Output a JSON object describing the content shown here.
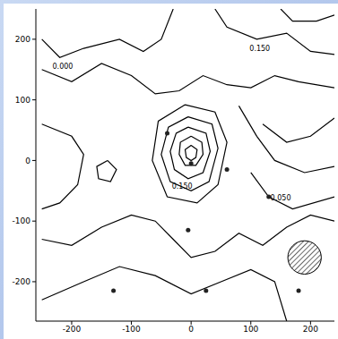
{
  "chart_data": {
    "type": "contour",
    "xlim": [
      -260,
      240
    ],
    "ylim": [
      -265,
      250
    ],
    "xticks": [
      -200,
      -100,
      0,
      100,
      200
    ],
    "yticks": [
      -200,
      -100,
      0,
      100,
      200
    ],
    "contours": [
      {
        "x": [
          0,
          10,
          8,
          0,
          -8,
          -10,
          0
        ],
        "y": [
          25,
          18,
          5,
          0,
          5,
          18,
          25
        ]
      },
      {
        "x": [
          0,
          18,
          20,
          8,
          -10,
          -20,
          -18,
          0
        ],
        "y": [
          40,
          30,
          10,
          -8,
          -8,
          10,
          30,
          40
        ]
      },
      {
        "x": [
          -5,
          25,
          32,
          20,
          -5,
          -28,
          -35,
          -25,
          -5
        ],
        "y": [
          55,
          45,
          15,
          -20,
          -30,
          -15,
          15,
          45,
          55
        ]
      },
      {
        "x": [
          -5,
          35,
          45,
          30,
          0,
          -35,
          -50,
          -38,
          -5
        ],
        "y": [
          72,
          60,
          20,
          -35,
          -50,
          -35,
          10,
          55,
          72
        ]
      },
      {
        "x": [
          -10,
          40,
          60,
          45,
          10,
          -40,
          -65,
          -55,
          -10
        ],
        "y": [
          92,
          80,
          30,
          -40,
          -70,
          -60,
          0,
          65,
          92
        ]
      },
      {
        "x": [
          -250,
          -200,
          -150,
          -100,
          -60,
          -20,
          20,
          60,
          100,
          140,
          180,
          240
        ],
        "y": [
          150,
          130,
          160,
          140,
          110,
          115,
          140,
          125,
          120,
          140,
          130,
          120
        ]
      },
      {
        "x": [
          -250,
          -220,
          -180,
          -120,
          -80,
          -50,
          -30
        ],
        "y": [
          200,
          170,
          185,
          200,
          180,
          200,
          250
        ]
      },
      {
        "x": [
          40,
          60,
          110,
          160,
          200,
          240
        ],
        "y": [
          250,
          220,
          200,
          210,
          180,
          175
        ]
      },
      {
        "x": [
          150,
          170,
          210,
          240
        ],
        "y": [
          250,
          230,
          230,
          240
        ]
      },
      {
        "x": [
          -140,
          -125,
          -135,
          -155,
          -158,
          -140
        ],
        "y": [
          0,
          -15,
          -35,
          -30,
          -10,
          0
        ]
      },
      {
        "x": [
          -250,
          -200,
          -180,
          -190,
          -220,
          -250
        ],
        "y": [
          60,
          40,
          10,
          -40,
          -70,
          -80
        ]
      },
      {
        "x": [
          -250,
          -200,
          -150,
          -100,
          -60,
          -30,
          0,
          40,
          80,
          120,
          160,
          200,
          240
        ],
        "y": [
          -130,
          -140,
          -110,
          -90,
          -100,
          -130,
          -160,
          -150,
          -120,
          -140,
          -110,
          -90,
          -100
        ]
      },
      {
        "x": [
          -250,
          -180,
          -120,
          -60,
          0,
          50,
          100,
          140,
          160
        ],
        "y": [
          -230,
          -200,
          -175,
          -190,
          -220,
          -200,
          -180,
          -200,
          -265
        ]
      },
      {
        "x": [
          100,
          130,
          170,
          240
        ],
        "y": [
          -20,
          -60,
          -80,
          -60
        ]
      },
      {
        "x": [
          120,
          160,
          200,
          240
        ],
        "y": [
          60,
          30,
          40,
          70
        ]
      },
      {
        "x": [
          80,
          110,
          140,
          190,
          240
        ],
        "y": [
          90,
          40,
          0,
          -20,
          -10
        ]
      }
    ],
    "annotations": [
      {
        "text": "0.000",
        "x": -215,
        "y": 155
      },
      {
        "text": "0.150",
        "x": 115,
        "y": 185
      },
      {
        "text": "0.150",
        "x": -15,
        "y": -42
      },
      {
        "text": "0.050",
        "x": 150,
        "y": -62
      }
    ],
    "sources": {
      "x": [
        0,
        -5,
        -130,
        180,
        25,
        60,
        -40,
        130
      ],
      "y": [
        -5,
        -115,
        -215,
        -215,
        -215,
        -15,
        45,
        -60
      ]
    },
    "smoothing_circle": {
      "x": 190,
      "y": -160,
      "r": 28
    }
  }
}
